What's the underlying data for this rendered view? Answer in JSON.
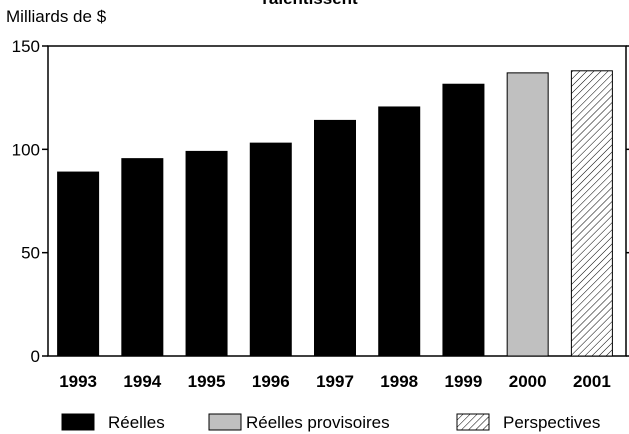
{
  "chart_data": {
    "type": "bar",
    "title": "ralentissent",
    "ylabel": "Milliards de $",
    "categories": [
      "1993",
      "1994",
      "1995",
      "1996",
      "1997",
      "1998",
      "1999",
      "2000",
      "2001"
    ],
    "values": [
      89,
      95.5,
      99,
      103,
      114,
      120.5,
      131.5,
      137,
      138
    ],
    "bar_kinds": [
      "actual",
      "actual",
      "actual",
      "actual",
      "actual",
      "actual",
      "actual",
      "provisional",
      "projected"
    ],
    "ylim": [
      0,
      150
    ],
    "yticks": [
      0,
      50,
      100,
      150
    ],
    "grid": false,
    "legend": {
      "placement": "bottom",
      "items": [
        {
          "kind": "actual",
          "label": "Réelles"
        },
        {
          "kind": "provisional",
          "label": "Réelles provisoires"
        },
        {
          "kind": "projected",
          "label": "Perspectives"
        }
      ]
    },
    "colors": {
      "actual": "#000000",
      "provisional": "#c0c0c0",
      "projected_hatch": "#000000"
    }
  }
}
